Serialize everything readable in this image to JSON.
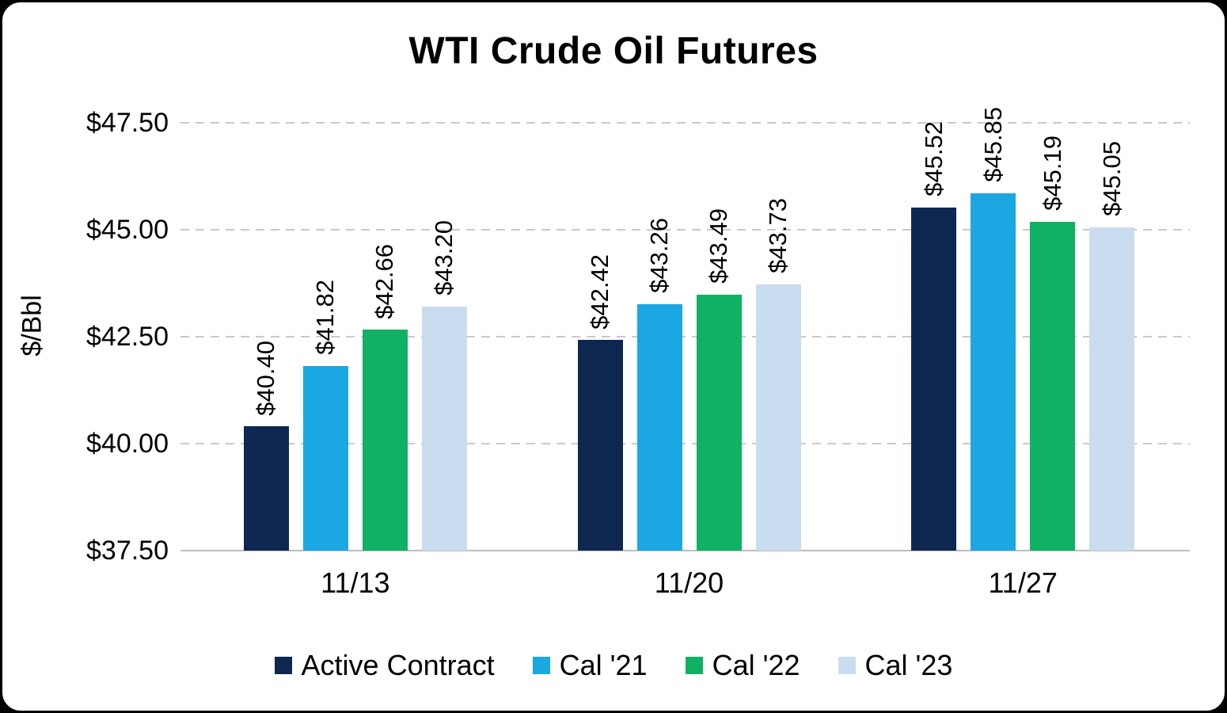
{
  "chart_data": {
    "type": "bar",
    "title": "WTI Crude Oil Futures",
    "ylabel": "$/Bbl",
    "xlabel": "",
    "ylim": [
      37.5,
      47.5
    ],
    "yticks": [
      37.5,
      40,
      42.5,
      45,
      47.5
    ],
    "ytick_labels": [
      "$37.50",
      "$40.00",
      "$42.50",
      "$45.00",
      "$47.50"
    ],
    "grid": "dashed horizontal gridlines, solid baseline",
    "legend_position": "bottom",
    "value_labels": "rotated 90 degrees above each bar",
    "categories": [
      "11/13",
      "11/20",
      "11/27"
    ],
    "series": [
      {
        "name": "Active Contract",
        "color": "#0e2750",
        "values": [
          40.4,
          42.42,
          45.52
        ],
        "labels": [
          "$40.40",
          "$42.42",
          "$45.52"
        ]
      },
      {
        "name": "Cal '21",
        "color": "#1ba7e1",
        "values": [
          41.82,
          43.26,
          45.85
        ],
        "labels": [
          "$41.82",
          "$43.26",
          "$45.85"
        ]
      },
      {
        "name": "Cal '22",
        "color": "#0fb164",
        "values": [
          42.66,
          43.49,
          45.19
        ],
        "labels": [
          "$42.66",
          "$43.49",
          "$45.19"
        ]
      },
      {
        "name": "Cal '23",
        "color": "#cadcf0",
        "values": [
          43.2,
          43.73,
          45.05
        ],
        "labels": [
          "$43.20",
          "$43.73",
          "$45.05"
        ]
      }
    ]
  }
}
